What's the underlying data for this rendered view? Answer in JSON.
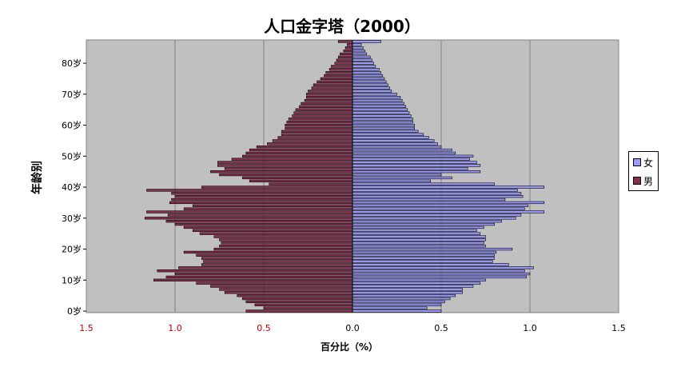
{
  "chart_data": {
    "type": "bar",
    "orientation": "horizontal",
    "title": "人口金字塔（2000）",
    "xlabel": "百分比（%）",
    "ylabel": "年龄别",
    "xlim": [
      -1.5,
      1.5
    ],
    "x_tick_labels": [
      "1.5",
      "1.0",
      "0.5",
      "0.0",
      "0.5",
      "1.0",
      "1.5"
    ],
    "y_tick_labels": [
      "0岁",
      "10岁",
      "20岁",
      "30岁",
      "40岁",
      "50岁",
      "60岁",
      "70岁",
      "80岁"
    ],
    "grid": true,
    "legend_position": "right",
    "ages": [
      0,
      1,
      2,
      3,
      4,
      5,
      6,
      7,
      8,
      9,
      10,
      11,
      12,
      13,
      14,
      15,
      16,
      17,
      18,
      19,
      20,
      21,
      22,
      23,
      24,
      25,
      26,
      27,
      28,
      29,
      30,
      31,
      32,
      33,
      34,
      35,
      36,
      37,
      38,
      39,
      40,
      41,
      42,
      43,
      44,
      45,
      46,
      47,
      48,
      49,
      50,
      51,
      52,
      53,
      54,
      55,
      56,
      57,
      58,
      59,
      60,
      61,
      62,
      63,
      64,
      65,
      66,
      67,
      68,
      69,
      70,
      71,
      72,
      73,
      74,
      75,
      76,
      77,
      78,
      79,
      80,
      81,
      82,
      83,
      84,
      85,
      86,
      87
    ],
    "series": [
      {
        "name": "男",
        "color": "#8a2e50",
        "values": [
          0.6,
          0.5,
          0.55,
          0.6,
          0.62,
          0.65,
          0.72,
          0.75,
          0.8,
          0.88,
          1.12,
          1.05,
          1.0,
          1.1,
          0.98,
          0.85,
          0.84,
          0.85,
          0.88,
          0.95,
          0.78,
          0.75,
          0.74,
          0.75,
          0.78,
          0.86,
          0.9,
          0.95,
          1.0,
          1.05,
          1.17,
          1.04,
          1.16,
          0.95,
          0.9,
          1.03,
          1.02,
          1.0,
          1.02,
          1.16,
          0.85,
          0.47,
          0.58,
          0.62,
          0.75,
          0.8,
          0.72,
          0.76,
          0.76,
          0.68,
          0.62,
          0.6,
          0.58,
          0.54,
          0.48,
          0.45,
          0.42,
          0.4,
          0.4,
          0.38,
          0.38,
          0.37,
          0.36,
          0.34,
          0.33,
          0.32,
          0.3,
          0.29,
          0.27,
          0.26,
          0.26,
          0.25,
          0.23,
          0.22,
          0.2,
          0.18,
          0.16,
          0.15,
          0.13,
          0.12,
          0.1,
          0.09,
          0.08,
          0.07,
          0.05,
          0.04,
          0.03,
          0.08
        ]
      },
      {
        "name": "女",
        "color": "#9999ff",
        "values": [
          0.5,
          0.42,
          0.5,
          0.52,
          0.55,
          0.58,
          0.62,
          0.62,
          0.68,
          0.72,
          0.75,
          0.98,
          1.0,
          0.97,
          1.02,
          0.88,
          0.79,
          0.8,
          0.8,
          0.81,
          0.9,
          0.75,
          0.74,
          0.75,
          0.75,
          0.72,
          0.7,
          0.74,
          0.8,
          0.84,
          0.92,
          0.95,
          1.08,
          0.97,
          0.99,
          1.08,
          0.86,
          0.96,
          0.95,
          0.93,
          1.08,
          0.8,
          0.44,
          0.56,
          0.5,
          0.72,
          0.65,
          0.72,
          0.7,
          0.66,
          0.68,
          0.58,
          0.56,
          0.5,
          0.48,
          0.46,
          0.43,
          0.4,
          0.37,
          0.35,
          0.35,
          0.34,
          0.34,
          0.33,
          0.32,
          0.31,
          0.3,
          0.29,
          0.28,
          0.27,
          0.25,
          0.22,
          0.21,
          0.2,
          0.19,
          0.18,
          0.17,
          0.16,
          0.15,
          0.13,
          0.12,
          0.11,
          0.1,
          0.08,
          0.07,
          0.06,
          0.05,
          0.16
        ]
      }
    ]
  }
}
